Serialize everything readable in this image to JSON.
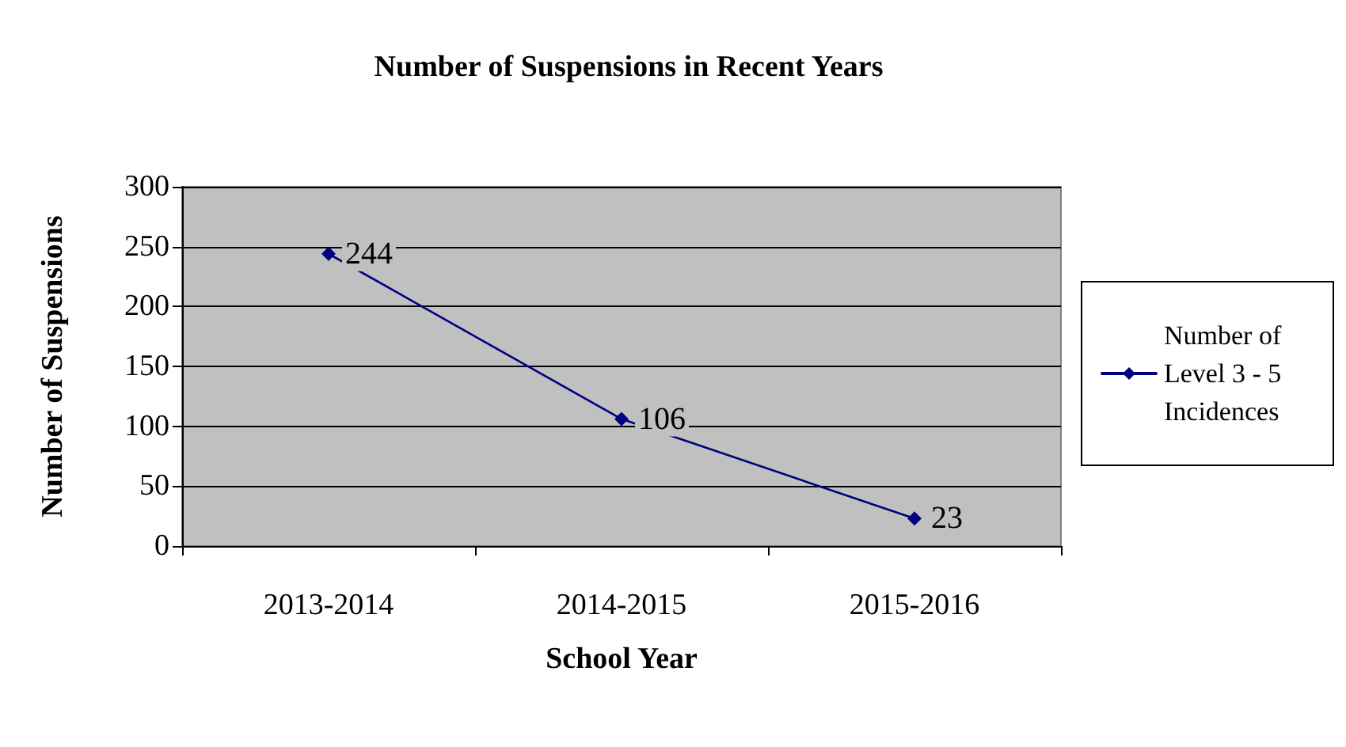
{
  "chart_data": {
    "type": "line",
    "title": "Number of Suspensions in Recent Years",
    "xlabel": "School Year",
    "ylabel": "Number of Suspensions",
    "categories": [
      "2013-2014",
      "2014-2015",
      "2015-2016"
    ],
    "series": [
      {
        "name": "Number of Level 3 - 5 Incidences",
        "color": "#000080",
        "values": [
          244,
          106,
          23
        ]
      }
    ],
    "ylim": [
      0,
      300
    ],
    "yticks": [
      0,
      50,
      100,
      150,
      200,
      250,
      300
    ],
    "grid": "y",
    "legend": "right",
    "marker": "diamond",
    "line_style": "solid",
    "data_labels": true
  }
}
